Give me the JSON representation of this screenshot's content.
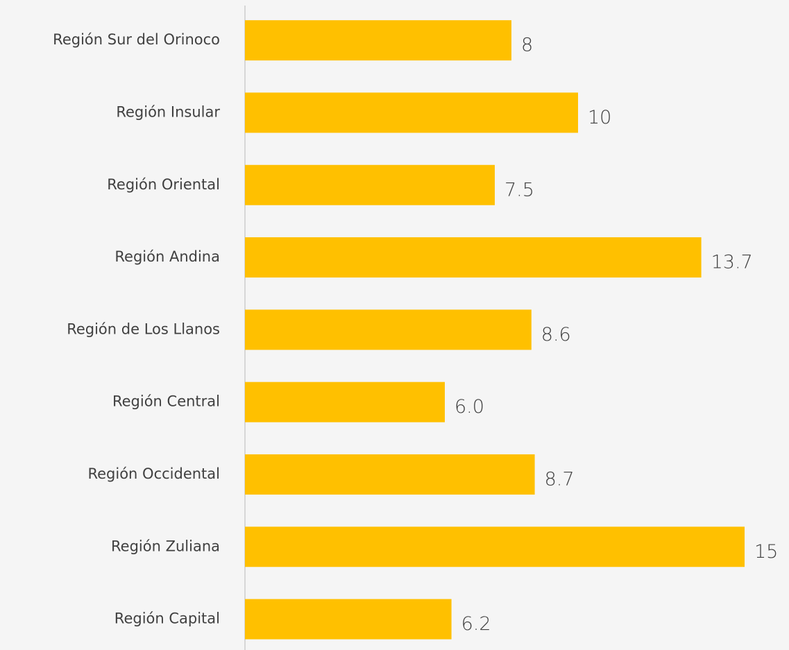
{
  "chart_data": {
    "type": "bar",
    "orientation": "horizontal",
    "categories": [
      "Región Sur del Orinoco",
      "Región Insular",
      "Región Oriental",
      "Región Andina",
      "Región de Los Llanos",
      "Región Central",
      "Región Occidental",
      "Región Zuliana",
      "Región Capital"
    ],
    "values": [
      8,
      10,
      7.5,
      13.7,
      8.6,
      6,
      8.7,
      15,
      6.2
    ],
    "value_labels": [
      "8",
      "10",
      "7.5",
      "13.7",
      "8.6",
      "6.0",
      "8.7",
      "15",
      "6.2"
    ],
    "color": "#ffc000"
  }
}
